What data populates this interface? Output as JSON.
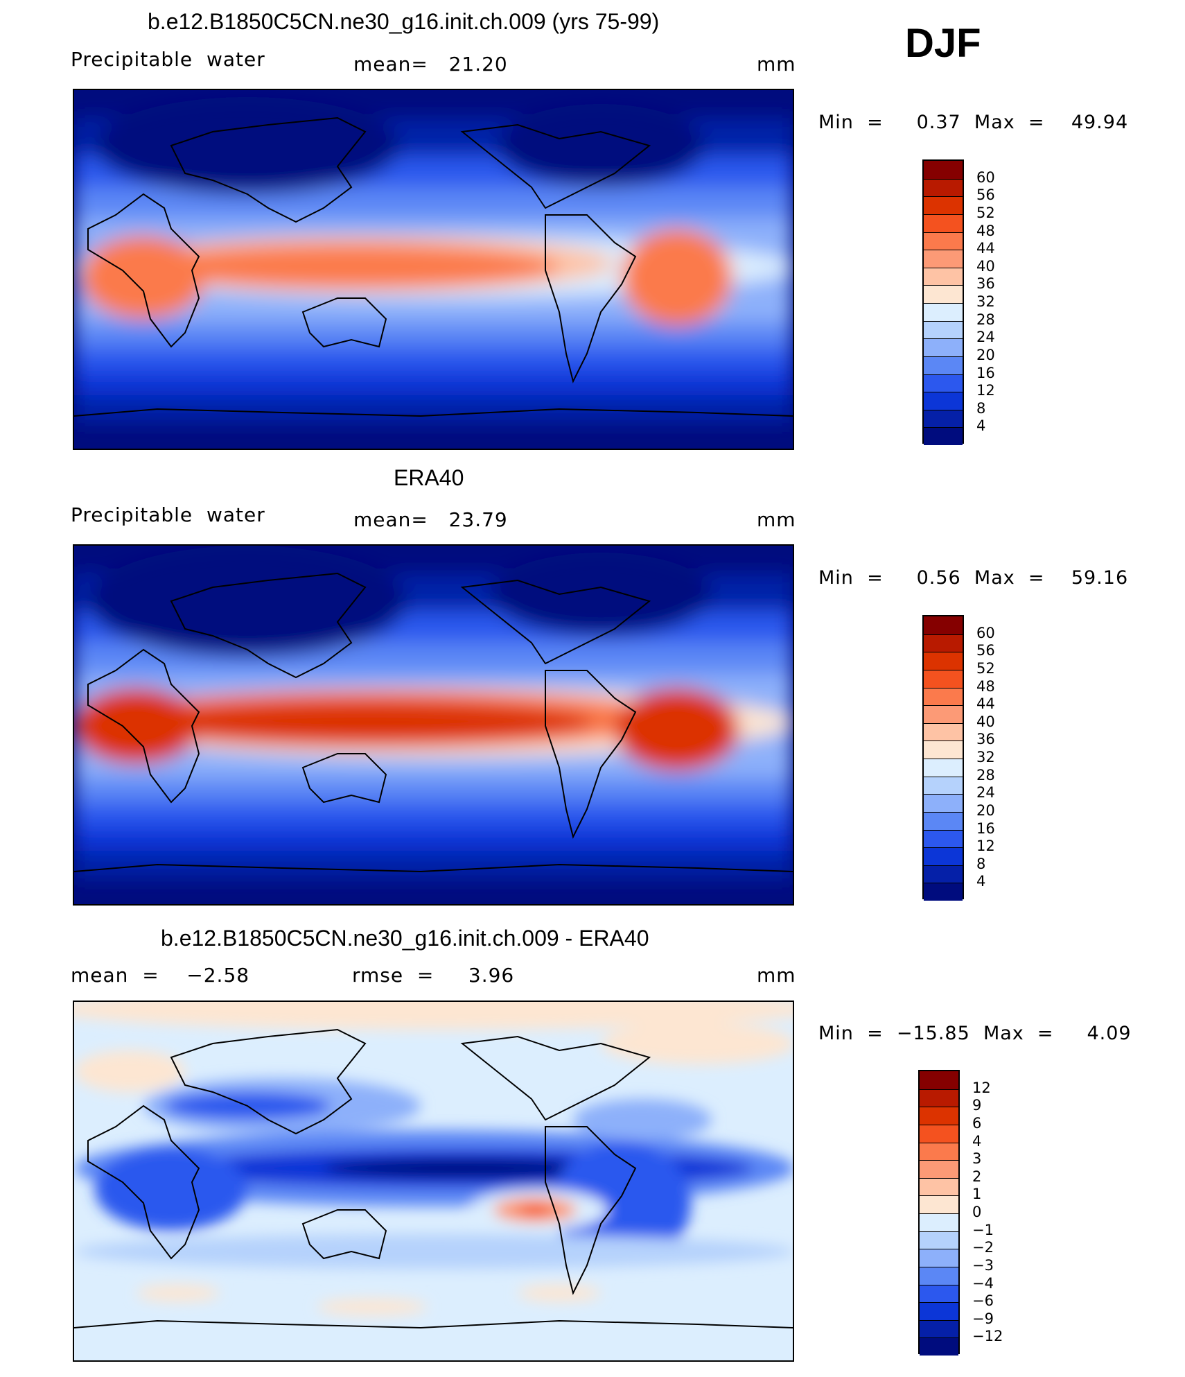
{
  "season": "DJF",
  "panels": [
    {
      "title": "b.e12.B1850C5CN.ne30_g16.init.ch.009 (yrs 75-99)",
      "left_label": "Precipitable  water",
      "center_label": "mean=   21.20",
      "units": "mm",
      "min_max": "Min  =     0.37  Max  =    49.94",
      "colorbar": {
        "labels": [
          "60",
          "56",
          "52",
          "48",
          "44",
          "40",
          "36",
          "32",
          "28",
          "24",
          "20",
          "16",
          "12",
          "8",
          "4"
        ],
        "colors": [
          "#850000",
          "#b81a00",
          "#dc3300",
          "#f4521f",
          "#fb7a4c",
          "#fc9a76",
          "#fec3a5",
          "#fde6d2",
          "#dceefe",
          "#b5d2fc",
          "#8db0fa",
          "#5b87f5",
          "#2c58ee",
          "#0c36d7",
          "#0520a8",
          "#000c7e"
        ]
      }
    },
    {
      "title": "ERA40",
      "left_label": "Precipitable  water",
      "center_label": "mean=   23.79",
      "units": "mm",
      "min_max": "Min  =     0.56  Max  =    59.16",
      "colorbar": {
        "labels": [
          "60",
          "56",
          "52",
          "48",
          "44",
          "40",
          "36",
          "32",
          "28",
          "24",
          "20",
          "16",
          "12",
          "8",
          "4"
        ],
        "colors": [
          "#850000",
          "#b81a00",
          "#dc3300",
          "#f4521f",
          "#fb7a4c",
          "#fc9a76",
          "#fec3a5",
          "#fde6d2",
          "#dceefe",
          "#b5d2fc",
          "#8db0fa",
          "#5b87f5",
          "#2c58ee",
          "#0c36d7",
          "#0520a8",
          "#000c7e"
        ]
      }
    },
    {
      "title": "b.e12.B1850C5CN.ne30_g16.init.ch.009 - ERA40",
      "left_label": "mean  =    −2.58",
      "center_label": "rmse  =     3.96",
      "units": "mm",
      "min_max": "Min  =  −15.85  Max  =     4.09",
      "colorbar": {
        "labels": [
          "12",
          "9",
          "6",
          "4",
          "3",
          "2",
          "1",
          "0",
          "−1",
          "−2",
          "−3",
          "−4",
          "−6",
          "−9",
          "−12"
        ],
        "colors": [
          "#850000",
          "#b81a00",
          "#dc3300",
          "#f4521f",
          "#fb7a4c",
          "#fc9a76",
          "#fec3a5",
          "#fde6d2",
          "#dceefe",
          "#b5d2fc",
          "#8db0fa",
          "#5b87f5",
          "#2c58ee",
          "#0c36d7",
          "#0520a8",
          "#000c7e"
        ]
      }
    }
  ]
}
